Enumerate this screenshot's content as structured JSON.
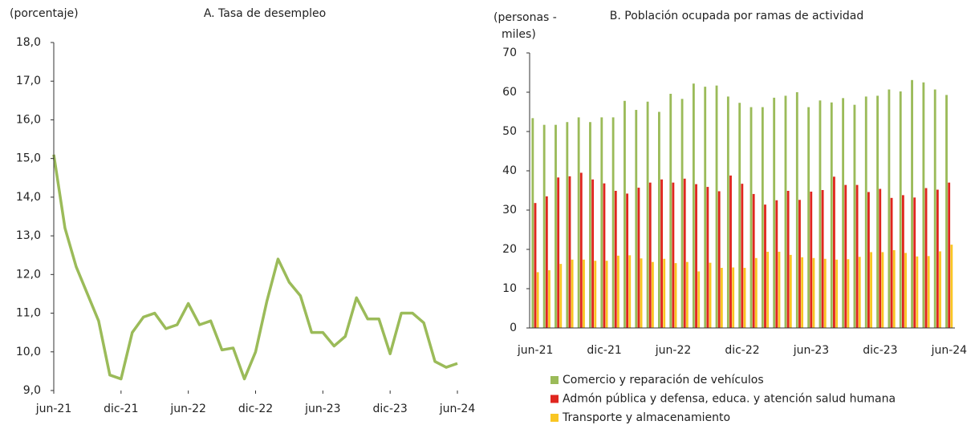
{
  "chart_data": [
    {
      "type": "line",
      "title": "A. Tasa de desempleo",
      "y_label": "(porcentaje)",
      "categories": [
        "jun-21",
        null,
        null,
        null,
        null,
        null,
        "dic-21",
        null,
        null,
        null,
        null,
        null,
        "jun-22",
        null,
        null,
        null,
        null,
        null,
        "dic-22",
        null,
        null,
        null,
        null,
        null,
        "jun-23",
        null,
        null,
        null,
        null,
        null,
        "dic-23",
        null,
        null,
        null,
        null,
        null,
        "jun-24"
      ],
      "series": [
        {
          "name": "Tasa de desempleo",
          "color": "#9bbb59",
          "values": [
            15.1,
            13.2,
            12.2,
            11.5,
            10.8,
            9.4,
            9.3,
            10.5,
            10.9,
            11.0,
            10.6,
            10.7,
            11.25,
            10.7,
            10.8,
            10.05,
            10.1,
            9.3,
            10.0,
            11.3,
            12.4,
            11.8,
            11.45,
            10.5,
            10.5,
            10.15,
            10.4,
            11.4,
            10.85,
            10.85,
            9.95,
            11.0,
            11.0,
            10.75,
            9.75,
            9.6,
            9.7
          ]
        }
      ],
      "ylim": [
        9,
        18
      ],
      "yticks": [
        {
          "value": 9,
          "label": "9,0"
        },
        {
          "value": 10,
          "label": "10,0"
        },
        {
          "value": 11,
          "label": "11,0"
        },
        {
          "value": 12,
          "label": "12,0"
        },
        {
          "value": 13,
          "label": "13,0"
        },
        {
          "value": 14,
          "label": "14,0"
        },
        {
          "value": 15,
          "label": "15,0"
        },
        {
          "value": 16,
          "label": "16,0"
        },
        {
          "value": 17,
          "label": "17,0"
        },
        {
          "value": 18,
          "label": "18,0"
        }
      ]
    },
    {
      "type": "bar",
      "title": "B. Población ocupada por ramas de actividad",
      "y_label": [
        "(personas -",
        "miles)"
      ],
      "categories": [
        "jun-21",
        null,
        null,
        null,
        null,
        null,
        "dic-21",
        null,
        null,
        null,
        null,
        null,
        "jun-22",
        null,
        null,
        null,
        null,
        null,
        "dic-22",
        null,
        null,
        null,
        null,
        null,
        "jun-23",
        null,
        null,
        null,
        null,
        null,
        "dic-23",
        null,
        null,
        null,
        null,
        null,
        "jun-24"
      ],
      "series": [
        {
          "name": "Comercio y reparación de vehículos",
          "color": "#9bbb59",
          "values": [
            53.4,
            51.7,
            51.7,
            52.4,
            53.6,
            52.4,
            53.6,
            53.6,
            57.8,
            55.5,
            57.6,
            55,
            59.6,
            58.3,
            62.2,
            61.4,
            61.7,
            58.9,
            57.3,
            56.2,
            56.2,
            58.6,
            59.1,
            60,
            56.2,
            57.9,
            57.4,
            58.5,
            56.8,
            58.9,
            59.1,
            60.7,
            60.2,
            63.1,
            62.5,
            60.7,
            59.3
          ]
        },
        {
          "name": "Admón pública y defensa, educa. y atención salud humana",
          "color": "#e0261f",
          "values": [
            31.8,
            33.5,
            38.3,
            38.6,
            39.5,
            37.8,
            36.8,
            34.9,
            34.2,
            35.7,
            37,
            37.8,
            37,
            38,
            36.6,
            35.9,
            34.8,
            38.8,
            36.7,
            34.1,
            31.4,
            32.5,
            34.9,
            32.6,
            34.7,
            35.1,
            38.5,
            36.4,
            36.4,
            34.6,
            35.4,
            33.1,
            33.8,
            33.2,
            35.6,
            35.2,
            37
          ]
        },
        {
          "name": "Transporte y almacenamiento",
          "color": "#f9c623",
          "values": [
            14.2,
            14.7,
            16.3,
            17.4,
            17.4,
            17.1,
            17.1,
            18.4,
            18.5,
            17.7,
            16.8,
            17.6,
            16.5,
            16.8,
            14.4,
            16.6,
            15.3,
            15.4,
            15.3,
            17.8,
            19.4,
            19.4,
            18.6,
            18,
            17.8,
            17.6,
            17.4,
            17.5,
            18.1,
            19.3,
            19.3,
            19.8,
            19.1,
            18.2,
            18.3,
            19.5,
            21.2
          ]
        }
      ],
      "ylim": [
        0,
        70
      ],
      "yticks": [
        0,
        10,
        20,
        30,
        40,
        50,
        60,
        70
      ]
    }
  ]
}
